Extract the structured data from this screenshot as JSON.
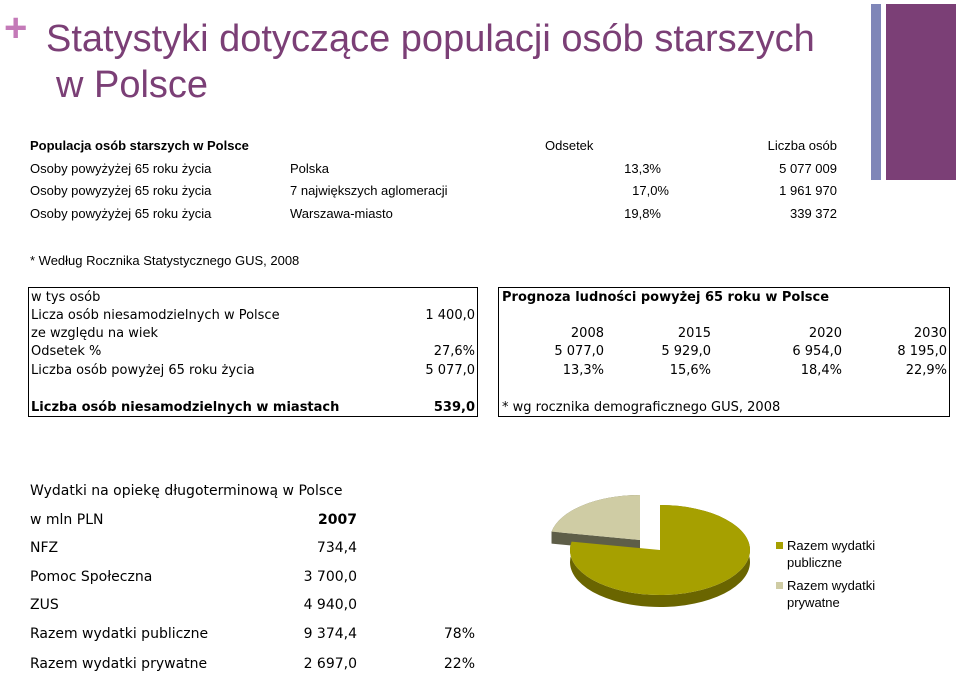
{
  "header": {
    "plus": "+",
    "title_line1": "Statystyki dotyczące populacji osób starszych",
    "title_line2": "w Polsce"
  },
  "table1": {
    "header": {
      "label": "Populacja osób starszych w Polsce",
      "odsetek": "Odsetek",
      "liczba": "Liczba osób"
    },
    "rows": [
      {
        "label": "Osoby powyżyżej 65 roku życia",
        "region": "Polska",
        "odsetek": "13,3%",
        "liczba": "5 077 009"
      },
      {
        "label": "Osoby powyzyżej 65 roku życia",
        "region": "7 największych aglomeracji",
        "odsetek": "17,0%",
        "liczba": "1 961 970"
      },
      {
        "label": "Osoby powyżyżej 65 roku życia",
        "region": "Warszawa-miasto",
        "odsetek": "19,8%",
        "liczba": "339 372"
      }
    ],
    "note": "* Według Rocznika Statystycznego GUS, 2008"
  },
  "box_left": {
    "unit": "w tys osób",
    "r1_label": "Licza osób niesamodzielnych  w Polsce",
    "r1_value": "1 400,0",
    "r2_label": "ze względu na wiek",
    "r3_label": "Odsetek %",
    "r3_value": "27,6%",
    "r4_label": "Liczba osób powyżej 65 roku życia",
    "r4_value": "5 077,0",
    "r5_label": "Liczba osób niesamodzielnych w miastach",
    "r5_value": "539,0"
  },
  "box_right": {
    "title": "Prognoza ludności powyżej 65 roku w Polsce",
    "years": [
      "2008",
      "2015",
      "2020",
      "2030"
    ],
    "population": [
      "5 077,0",
      "5 929,0",
      "6 954,0",
      "8 195,0"
    ],
    "share": [
      "13,3%",
      "15,6%",
      "18,4%",
      "22,9%"
    ],
    "note": "* wg rocznika demograficznego GUS, 2008"
  },
  "table3": {
    "title": "Wydatki na opiekę długoterminową w Polsce",
    "unit": "w mln PLN",
    "year": "2007",
    "rows": [
      {
        "label": "NFZ",
        "value": "734,4",
        "pct": ""
      },
      {
        "label": "Pomoc Społeczna",
        "value": "3 700,0",
        "pct": ""
      },
      {
        "label": "ZUS",
        "value": "4 940,0",
        "pct": ""
      },
      {
        "label": "Razem wydatki publiczne",
        "value": "9 374,4",
        "pct": "78%"
      },
      {
        "label": "Razem wydatki prywatne",
        "value": "2 697,0",
        "pct": "22%"
      }
    ]
  },
  "chart_data": {
    "type": "pie",
    "labels": [
      "Razem wydatki publiczne",
      "Razem wydatki prywatne"
    ],
    "values": [
      78,
      22
    ],
    "colors": [
      "#a6a000",
      "#cfcca4"
    ],
    "legend": "right"
  }
}
